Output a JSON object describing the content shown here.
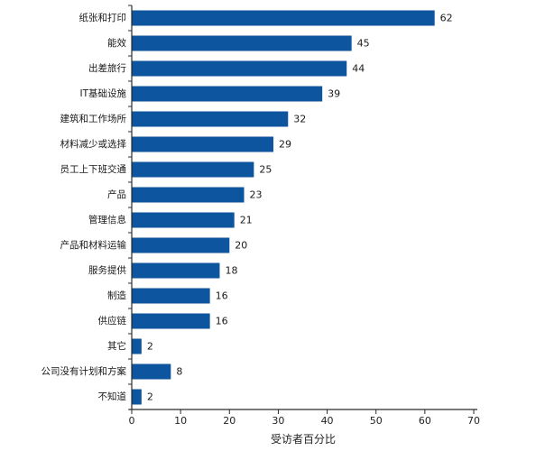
{
  "page": {
    "background": "#ffffff"
  },
  "chart_data": {
    "type": "bar",
    "orientation": "horizontal",
    "title": "",
    "categories": [
      "纸张和打印",
      "能效",
      "出差旅行",
      "IT基础设施",
      "建筑和工作场所",
      "材料减少或选择",
      "员工上下班交通",
      "产品",
      "管理信息",
      "产品和材料运输",
      "服务提供",
      "制造",
      "供应链",
      "其它",
      "公司没有计划和方案",
      "不知道"
    ],
    "values": [
      62,
      45,
      44,
      39,
      32,
      29,
      25,
      23,
      21,
      20,
      18,
      16,
      16,
      2,
      8,
      2
    ],
    "xlabel": "受访者百分比",
    "xlim": [
      0,
      70
    ],
    "xticks": [
      0,
      10,
      20,
      30,
      40,
      50,
      60,
      70
    ],
    "bar_color": "#0D559E",
    "axis_color": "#2b2b2b",
    "text_color": "#1a1a1a",
    "grid": false,
    "legend": false,
    "data_labels": true
  }
}
